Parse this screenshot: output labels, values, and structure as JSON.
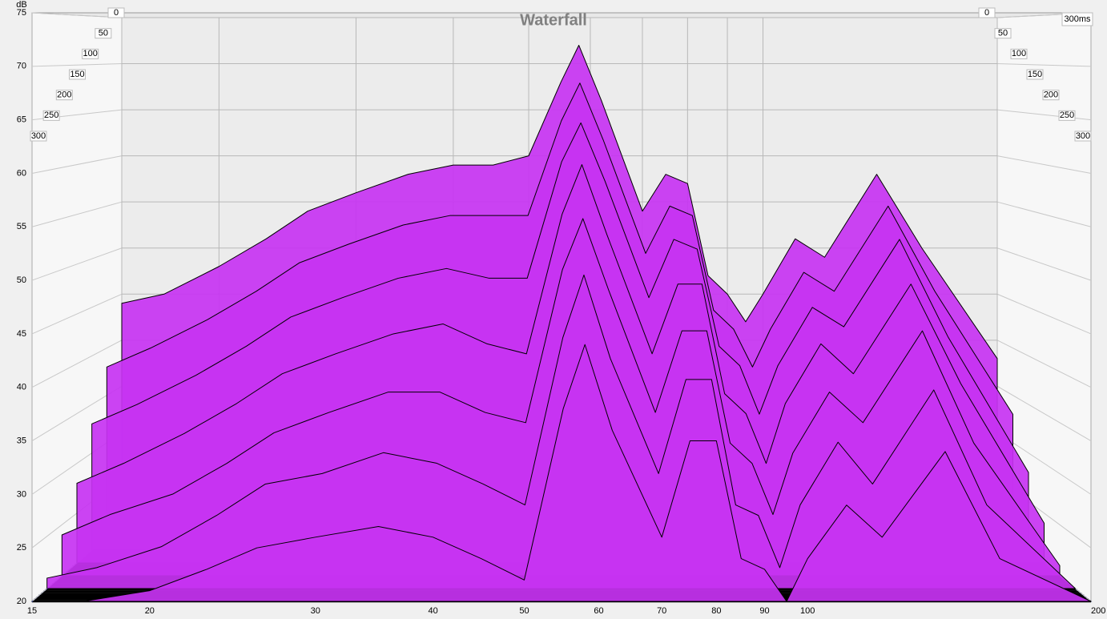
{
  "chart_data": {
    "type": "waterfall",
    "title": "Waterfall",
    "ylabel": "dB",
    "x": [
      15,
      17,
      20,
      23,
      26,
      30,
      35,
      40,
      45,
      50,
      55,
      58,
      62,
      70,
      75,
      80,
      85,
      90,
      95,
      100,
      110,
      120,
      140,
      160,
      200
    ],
    "xlim": [
      15,
      200
    ],
    "xscale": "log",
    "xticks": [
      15,
      20,
      30,
      40,
      50,
      60,
      70,
      80,
      90,
      100,
      {
        "value": 200,
        "label": "200 Hz"
      }
    ],
    "ylim": [
      20,
      75
    ],
    "yticks": [
      20,
      25,
      30,
      35,
      40,
      45,
      50,
      55,
      60,
      65,
      70,
      75
    ],
    "zlim": [
      0,
      300
    ],
    "zticks": [
      0,
      50,
      100,
      150,
      200,
      250,
      300
    ],
    "zlabel": "300ms",
    "color": "#c733f2",
    "grid": true,
    "series": [
      {
        "time": 0,
        "values": [
          44,
          45,
          48,
          51,
          54,
          56,
          58,
          59,
          59,
          60,
          68,
          72,
          66,
          54,
          58,
          57,
          47,
          45,
          42,
          45,
          51,
          49,
          58,
          50,
          38
        ]
      },
      {
        "time": 50,
        "values": [
          38,
          40,
          43,
          46,
          49,
          51,
          53,
          54,
          54,
          54,
          64,
          68,
          62,
          50,
          55,
          54,
          44,
          42,
          38,
          42,
          48,
          46,
          55,
          46,
          33
        ]
      },
      {
        "time": 100,
        "values": [
          33,
          35,
          38,
          41,
          44,
          46,
          48,
          49,
          48,
          48,
          60,
          64,
          58,
          46,
          52,
          51,
          41,
          39,
          34,
          39,
          45,
          43,
          52,
          42,
          28
        ]
      },
      {
        "time": 150,
        "values": [
          28,
          30,
          33,
          36,
          39,
          41,
          43,
          44,
          42,
          41,
          55,
          60,
          53,
          41,
          48,
          48,
          37,
          35,
          30,
          36,
          42,
          39,
          48,
          38,
          24
        ]
      },
      {
        "time": 200,
        "values": [
          24,
          26,
          28,
          31,
          34,
          36,
          38,
          38,
          36,
          35,
          50,
          55,
          48,
          36,
          44,
          44,
          33,
          31,
          26,
          32,
          38,
          35,
          44,
          33,
          21
        ]
      },
      {
        "time": 250,
        "values": [
          21,
          22,
          24,
          27,
          30,
          31,
          33,
          32,
          30,
          28,
          44,
          50,
          42,
          31,
          40,
          40,
          28,
          27,
          22,
          28,
          34,
          30,
          39,
          28,
          20
        ]
      },
      {
        "time": 300,
        "values": [
          20,
          20,
          21,
          23,
          25,
          26,
          27,
          26,
          24,
          22,
          38,
          44,
          36,
          26,
          35,
          35,
          24,
          23,
          20,
          24,
          29,
          26,
          34,
          24,
          20
        ]
      }
    ]
  }
}
